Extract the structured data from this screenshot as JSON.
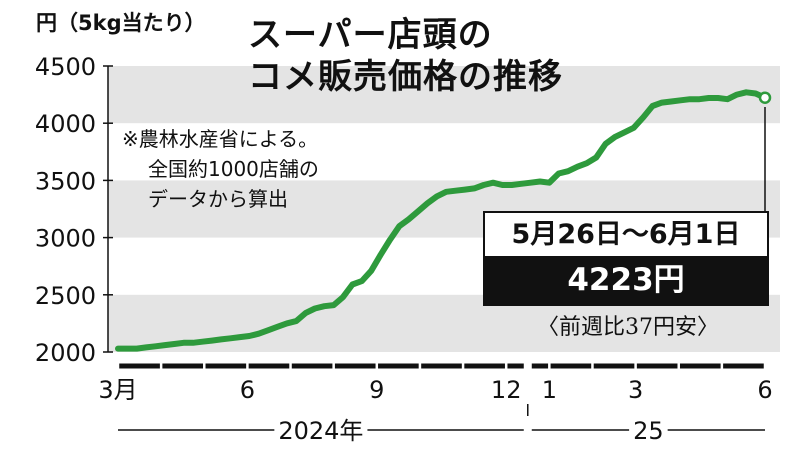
{
  "unit_label": "円（5kg当たり）",
  "title_lines": [
    "スーパー店頭の",
    "コメ販売価格の推移"
  ],
  "note_lines": [
    "※農林水産省による。",
    "全国約1000店舗の",
    "データから算出"
  ],
  "callout": {
    "date": "5月26日～6月1日",
    "price": "4223円",
    "change": "〈前週比37円安〉"
  },
  "colors": {
    "line": "#2e9a3c",
    "band": "#e4e4e4",
    "text": "#111111"
  },
  "chart_data": {
    "type": "line",
    "title": "スーパー店頭のコメ販売価格の推移",
    "ylabel": "円（5kg当たり）",
    "ylim": [
      2000,
      4500
    ],
    "yticks": [
      2000,
      2500,
      3000,
      3500,
      4000,
      4500
    ],
    "grid": "alternating horizontal bands",
    "x_tick_labels": [
      "3月",
      "6",
      "9",
      "12",
      "1",
      "3",
      "6"
    ],
    "year_labels": [
      "2024年",
      "25"
    ],
    "series": [
      {
        "values": [
          2030,
          2030,
          2030,
          2040,
          2050,
          2060,
          2070,
          2080,
          2080,
          2090,
          2100,
          2110,
          2120,
          2130,
          2140,
          2160,
          2190,
          2220,
          2250,
          2270,
          2340,
          2380,
          2400,
          2410,
          2480,
          2590,
          2620,
          2710,
          2850,
          2980,
          3100,
          3160,
          3230,
          3300,
          3360,
          3400,
          3410,
          3420,
          3430,
          3460,
          3480,
          3460,
          3460,
          3470,
          3480,
          3490,
          3480,
          3560,
          3580,
          3620,
          3650,
          3700,
          3820,
          3880,
          3920,
          3960,
          4050,
          4150,
          4180,
          4190,
          4200,
          4210,
          4210,
          4220,
          4220,
          4210,
          4250,
          4270,
          4260,
          4223
        ]
      }
    ]
  }
}
